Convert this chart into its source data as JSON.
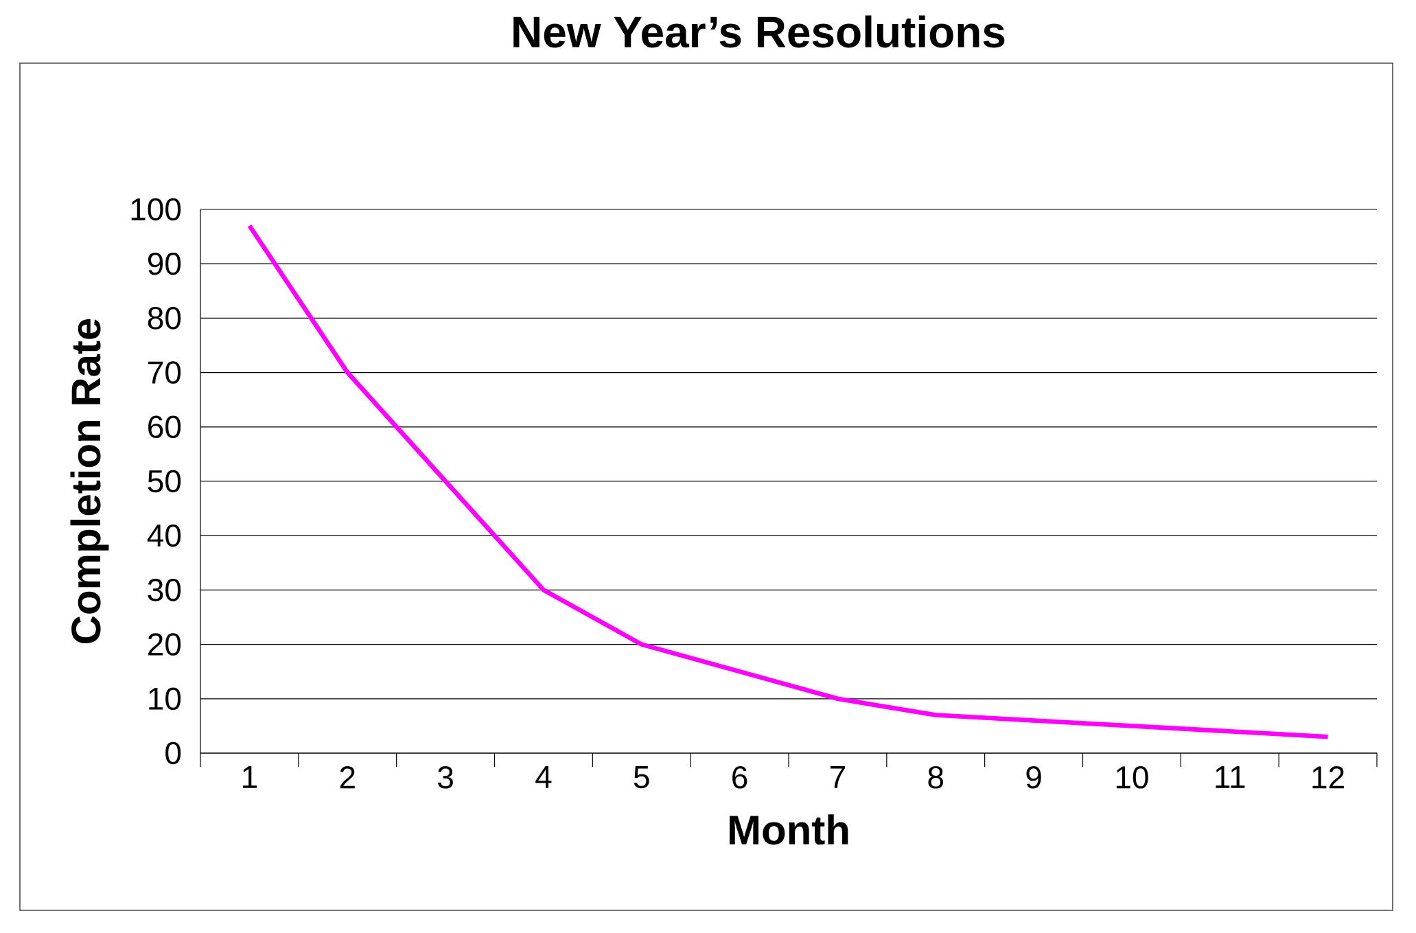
{
  "chart_data": {
    "type": "line",
    "title": "New Year’s Resolutions",
    "xlabel": "Month",
    "ylabel": "Completion Rate",
    "categories": [
      "1",
      "2",
      "3",
      "4",
      "5",
      "6",
      "7",
      "8",
      "9",
      "10",
      "11",
      "12"
    ],
    "series": [
      {
        "color": "#ff00ff",
        "values": [
          97,
          70,
          50,
          30,
          20,
          15,
          10,
          7,
          6,
          5,
          4,
          3
        ]
      }
    ],
    "ylim": [
      0,
      100
    ],
    "yticks": [
      0,
      10,
      20,
      30,
      40,
      50,
      60,
      70,
      80,
      90,
      100
    ],
    "grid": "y",
    "marker": "none",
    "line_style": "solid"
  }
}
